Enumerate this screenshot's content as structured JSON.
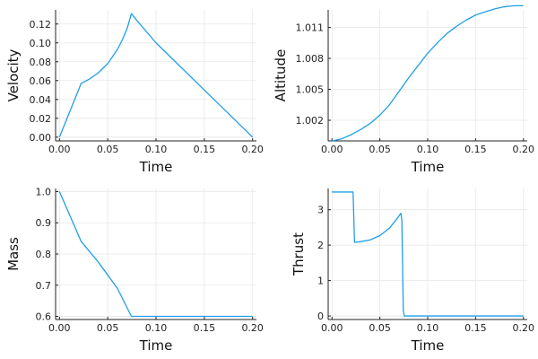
{
  "theme": {
    "series_color": "#1f9fe8",
    "axis_color": "#222222",
    "grid_color": "#e6e6e6"
  },
  "chart_data": [
    {
      "type": "line",
      "id": "velocity",
      "xlabel": "Time",
      "ylabel": "Velocity",
      "xlim": [
        -0.004,
        0.204
      ],
      "ylim": [
        -0.004,
        0.135
      ],
      "xticks": [
        0.0,
        0.05,
        0.1,
        0.15,
        0.2
      ],
      "xtick_labels": [
        "0.00",
        "0.05",
        "0.10",
        "0.15",
        "0.20"
      ],
      "yticks": [
        0.0,
        0.02,
        0.04,
        0.06,
        0.08,
        0.1,
        0.12
      ],
      "ytick_labels": [
        "0.00",
        "0.02",
        "0.04",
        "0.06",
        "0.08",
        "0.10",
        "0.12"
      ],
      "grid": true,
      "series": [
        {
          "x": [
            0.0,
            0.0225,
            0.03,
            0.04,
            0.05,
            0.06,
            0.065,
            0.07,
            0.0745,
            0.08,
            0.1,
            0.12,
            0.14,
            0.16,
            0.18,
            0.2
          ],
          "y": [
            0.0,
            0.057,
            0.061,
            0.068,
            0.078,
            0.093,
            0.103,
            0.115,
            0.131,
            0.124,
            0.1,
            0.08,
            0.06,
            0.04,
            0.02,
            0.0
          ]
        }
      ]
    },
    {
      "type": "line",
      "id": "altitude",
      "xlabel": "Time",
      "ylabel": "Altitude",
      "xlim": [
        -0.004,
        0.204
      ],
      "ylim": [
        1.0,
        1.0127
      ],
      "xticks": [
        0.0,
        0.05,
        0.1,
        0.15,
        0.2
      ],
      "xtick_labels": [
        "0.00",
        "0.05",
        "0.10",
        "0.15",
        "0.20"
      ],
      "yticks": [
        1.002,
        1.005,
        1.008,
        1.011
      ],
      "ytick_labels": [
        "1.002",
        "1.005",
        "1.008",
        "1.011"
      ],
      "grid": true,
      "series": [
        {
          "x": [
            0.0,
            0.01,
            0.02,
            0.03,
            0.04,
            0.05,
            0.06,
            0.07,
            0.08,
            0.09,
            0.1,
            0.11,
            0.12,
            0.13,
            0.14,
            0.15,
            0.16,
            0.17,
            0.18,
            0.19,
            0.2
          ],
          "y": [
            1.0,
            1.0002,
            1.0006,
            1.0011,
            1.0017,
            1.0025,
            1.0035,
            1.0048,
            1.0061,
            1.0073,
            1.0085,
            1.0095,
            1.0104,
            1.0111,
            1.0117,
            1.0122,
            1.0125,
            1.0128,
            1.013,
            1.0131,
            1.0131
          ]
        }
      ]
    },
    {
      "type": "line",
      "id": "mass",
      "xlabel": "Time",
      "ylabel": "Mass",
      "xlim": [
        -0.004,
        0.204
      ],
      "ylim": [
        0.59,
        1.01
      ],
      "xticks": [
        0.0,
        0.05,
        0.1,
        0.15,
        0.2
      ],
      "xtick_labels": [
        "0.00",
        "0.05",
        "0.10",
        "0.15",
        "0.20"
      ],
      "yticks": [
        0.6,
        0.7,
        0.8,
        0.9,
        1.0
      ],
      "ytick_labels": [
        "0.6",
        "0.7",
        "0.8",
        "0.9",
        "1.0"
      ],
      "grid": true,
      "series": [
        {
          "x": [
            0.0,
            0.0225,
            0.04,
            0.06,
            0.0745,
            0.1,
            0.15,
            0.2
          ],
          "y": [
            1.0,
            0.84,
            0.775,
            0.69,
            0.6,
            0.6,
            0.6,
            0.6
          ]
        }
      ]
    },
    {
      "type": "line",
      "id": "thrust",
      "xlabel": "Time",
      "ylabel": "Thrust",
      "xlim": [
        -0.004,
        0.204
      ],
      "ylim": [
        -0.1,
        3.6
      ],
      "xticks": [
        0.0,
        0.05,
        0.1,
        0.15,
        0.2
      ],
      "xtick_labels": [
        "0.00",
        "0.05",
        "0.10",
        "0.15",
        "0.20"
      ],
      "yticks": [
        0,
        1,
        2,
        3
      ],
      "ytick_labels": [
        "0",
        "1",
        "2",
        "3"
      ],
      "grid": true,
      "series": [
        {
          "x": [
            0.0,
            0.022,
            0.0235,
            0.03,
            0.04,
            0.05,
            0.06,
            0.068,
            0.072,
            0.073,
            0.0745,
            0.0755,
            0.1,
            0.15,
            0.2
          ],
          "y": [
            3.5,
            3.5,
            2.08,
            2.1,
            2.15,
            2.27,
            2.48,
            2.75,
            2.9,
            2.7,
            0.15,
            0.0,
            0.0,
            0.0,
            0.0
          ]
        }
      ]
    }
  ]
}
